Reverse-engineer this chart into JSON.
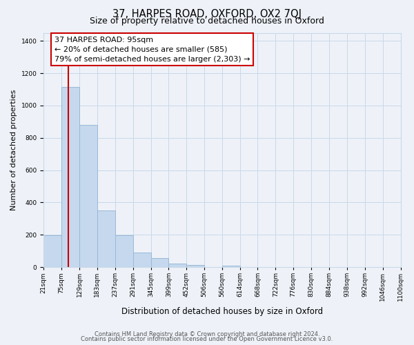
{
  "title": "37, HARPES ROAD, OXFORD, OX2 7QJ",
  "subtitle": "Size of property relative to detached houses in Oxford",
  "xlabel": "Distribution of detached houses by size in Oxford",
  "ylabel": "Number of detached properties",
  "bar_values": [
    195,
    1115,
    880,
    350,
    195,
    90,
    55,
    20,
    15,
    0,
    10,
    0,
    0,
    0,
    0,
    0,
    0,
    0,
    0,
    0
  ],
  "bin_edges": [
    21,
    75,
    129,
    183,
    237,
    291,
    345,
    399,
    452,
    506,
    560,
    614,
    668,
    722,
    776,
    830,
    884,
    938,
    992,
    1046,
    1100
  ],
  "tick_labels": [
    "21sqm",
    "75sqm",
    "129sqm",
    "183sqm",
    "237sqm",
    "291sqm",
    "345sqm",
    "399sqm",
    "452sqm",
    "506sqm",
    "560sqm",
    "614sqm",
    "668sqm",
    "722sqm",
    "776sqm",
    "830sqm",
    "884sqm",
    "938sqm",
    "992sqm",
    "1046sqm",
    "1100sqm"
  ],
  "bar_color": "#c5d8ed",
  "bar_edge_color": "#9ab8d8",
  "property_line_color": "#cc0000",
  "property_line_x": 95,
  "annotation_text_line1": "37 HARPES ROAD: 95sqm",
  "annotation_text_line2": "← 20% of detached houses are smaller (585)",
  "annotation_text_line3": "79% of semi-detached houses are larger (2,303) →",
  "annotation_box_color": "#ffffff",
  "annotation_box_edge_color": "#cc0000",
  "ylim": [
    0,
    1450
  ],
  "yticks": [
    0,
    200,
    400,
    600,
    800,
    1000,
    1200,
    1400
  ],
  "grid_color": "#c8d8e8",
  "bg_color": "#eef2f8",
  "plot_bg_color": "#eef2f8",
  "footer_line1": "Contains HM Land Registry data © Crown copyright and database right 2024.",
  "footer_line2": "Contains public sector information licensed under the Open Government Licence v3.0.",
  "title_fontsize": 10.5,
  "subtitle_fontsize": 9,
  "xlabel_fontsize": 8.5,
  "ylabel_fontsize": 8,
  "tick_fontsize": 6.5,
  "annotation_fontsize": 8,
  "footer_fontsize": 6
}
